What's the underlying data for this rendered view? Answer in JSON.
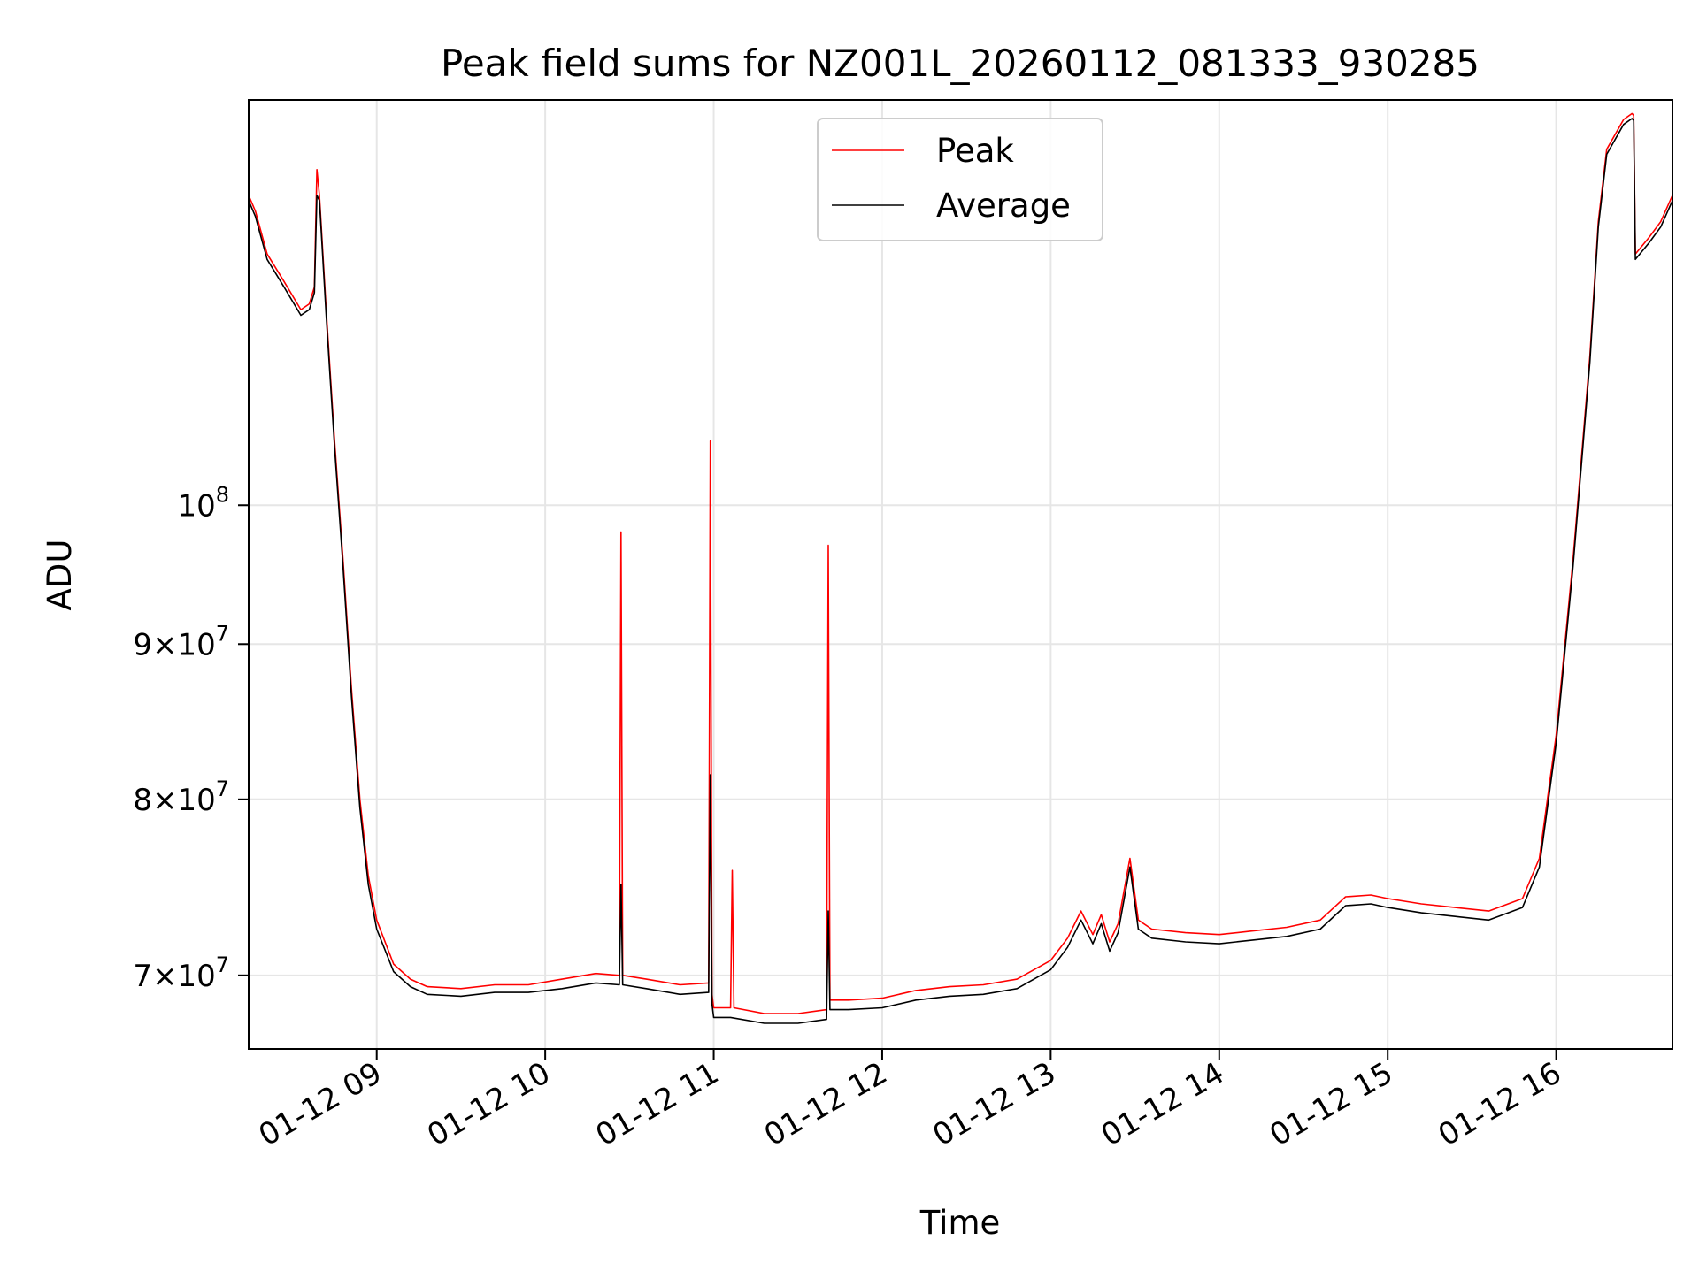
{
  "chart_data": {
    "type": "line",
    "title": "Peak field sums for NZ001L_20260112_081333_930285",
    "xlabel": "Time",
    "ylabel": "ADU",
    "yscale": "log",
    "grid": true,
    "legend_position": "top-center",
    "x_unit": "hours (decimal time of day, 2026-01-12)",
    "xlim": [
      8.24,
      16.69
    ],
    "ylim": [
      66200000,
      136000000
    ],
    "x_ticks": [
      {
        "value": 9,
        "label": "01-12 09"
      },
      {
        "value": 10,
        "label": "01-12 10"
      },
      {
        "value": 11,
        "label": "01-12 11"
      },
      {
        "value": 12,
        "label": "01-12 12"
      },
      {
        "value": 13,
        "label": "01-12 13"
      },
      {
        "value": 14,
        "label": "01-12 14"
      },
      {
        "value": 15,
        "label": "01-12 15"
      },
      {
        "value": 16,
        "label": "01-12 16"
      }
    ],
    "y_ticks": [
      {
        "value": 70000000,
        "mantissa": "7",
        "exponent": "7"
      },
      {
        "value": 80000000,
        "mantissa": "8",
        "exponent": "7"
      },
      {
        "value": 90000000,
        "mantissa": "9",
        "exponent": "7"
      },
      {
        "value": 100000000,
        "mantissa": "",
        "exponent": "8"
      }
    ],
    "series": [
      {
        "name": "Peak",
        "color": "#ff0000",
        "x": [
          8.24,
          8.28,
          8.35,
          8.45,
          8.55,
          8.6,
          8.63,
          8.645,
          8.66,
          8.7,
          8.75,
          8.8,
          8.85,
          8.9,
          8.95,
          9.0,
          9.1,
          9.2,
          9.3,
          9.5,
          9.7,
          9.9,
          10.1,
          10.3,
          10.44,
          10.45,
          10.46,
          10.6,
          10.8,
          10.97,
          10.98,
          10.99,
          11.0,
          11.1,
          11.11,
          11.12,
          11.3,
          11.5,
          11.67,
          11.68,
          11.69,
          11.8,
          12.0,
          12.2,
          12.4,
          12.6,
          12.8,
          13.0,
          13.1,
          13.18,
          13.25,
          13.3,
          13.35,
          13.4,
          13.47,
          13.52,
          13.6,
          13.8,
          14.0,
          14.2,
          14.4,
          14.6,
          14.75,
          14.9,
          15.0,
          15.2,
          15.4,
          15.6,
          15.8,
          15.9,
          16.0,
          16.1,
          16.2,
          16.25,
          16.3,
          16.4,
          16.45,
          16.46,
          16.47,
          16.55,
          16.62,
          16.69
        ],
        "values": [
          126500000,
          125000000,
          121000000,
          118500000,
          116000000,
          116500000,
          118000000,
          129000000,
          126500000,
          116000000,
          105000000,
          96000000,
          87000000,
          80000000,
          75500000,
          73000000,
          70600000,
          69800000,
          69400000,
          69300000,
          69500000,
          69500000,
          69800000,
          70100000,
          70000000,
          98000000,
          70000000,
          69800000,
          69500000,
          69600000,
          105000000,
          69000000,
          68300000,
          68300000,
          75800000,
          68300000,
          68000000,
          68000000,
          68200000,
          97000000,
          68700000,
          68700000,
          68800000,
          69200000,
          69400000,
          69500000,
          69800000,
          70800000,
          72000000,
          73500000,
          72200000,
          73300000,
          71800000,
          72800000,
          76500000,
          73000000,
          72500000,
          72300000,
          72200000,
          72400000,
          72600000,
          73000000,
          74300000,
          74400000,
          74200000,
          73900000,
          73700000,
          73500000,
          74200000,
          76500000,
          84000000,
          96000000,
          112000000,
          124000000,
          131000000,
          134000000,
          134600000,
          134400000,
          121000000,
          122500000,
          124000000,
          126500000
        ]
      },
      {
        "name": "Average",
        "color": "#000000",
        "x": [
          8.24,
          8.28,
          8.35,
          8.45,
          8.55,
          8.6,
          8.63,
          8.645,
          8.66,
          8.7,
          8.75,
          8.8,
          8.85,
          8.9,
          8.95,
          9.0,
          9.1,
          9.2,
          9.3,
          9.5,
          9.7,
          9.9,
          10.1,
          10.3,
          10.44,
          10.45,
          10.46,
          10.6,
          10.8,
          10.97,
          10.98,
          10.99,
          11.0,
          11.1,
          11.3,
          11.5,
          11.67,
          11.68,
          11.69,
          11.8,
          12.0,
          12.2,
          12.4,
          12.6,
          12.8,
          13.0,
          13.1,
          13.18,
          13.25,
          13.3,
          13.35,
          13.4,
          13.47,
          13.52,
          13.6,
          13.8,
          14.0,
          14.2,
          14.4,
          14.6,
          14.75,
          14.9,
          15.0,
          15.2,
          15.4,
          15.6,
          15.8,
          15.9,
          16.0,
          16.1,
          16.2,
          16.25,
          16.3,
          16.4,
          16.45,
          16.46,
          16.47,
          16.55,
          16.62,
          16.69
        ],
        "values": [
          126000000,
          124500000,
          120500000,
          118000000,
          115500000,
          116000000,
          117500000,
          126500000,
          126000000,
          115500000,
          104500000,
          95500000,
          86500000,
          79500000,
          75000000,
          72500000,
          70200000,
          69400000,
          69000000,
          68900000,
          69100000,
          69100000,
          69300000,
          69600000,
          69500000,
          75000000,
          69500000,
          69300000,
          69000000,
          69100000,
          81500000,
          68500000,
          67800000,
          67800000,
          67500000,
          67500000,
          67700000,
          73500000,
          68200000,
          68200000,
          68300000,
          68700000,
          68900000,
          69000000,
          69300000,
          70300000,
          71500000,
          73000000,
          71700000,
          72800000,
          71300000,
          72300000,
          76000000,
          72500000,
          72000000,
          71800000,
          71700000,
          71900000,
          72100000,
          72500000,
          73800000,
          73900000,
          73700000,
          73400000,
          73200000,
          73000000,
          73700000,
          76000000,
          83500000,
          95500000,
          111500000,
          123500000,
          130500000,
          133500000,
          134100000,
          133900000,
          120500000,
          122000000,
          123500000,
          126000000
        ]
      }
    ]
  }
}
